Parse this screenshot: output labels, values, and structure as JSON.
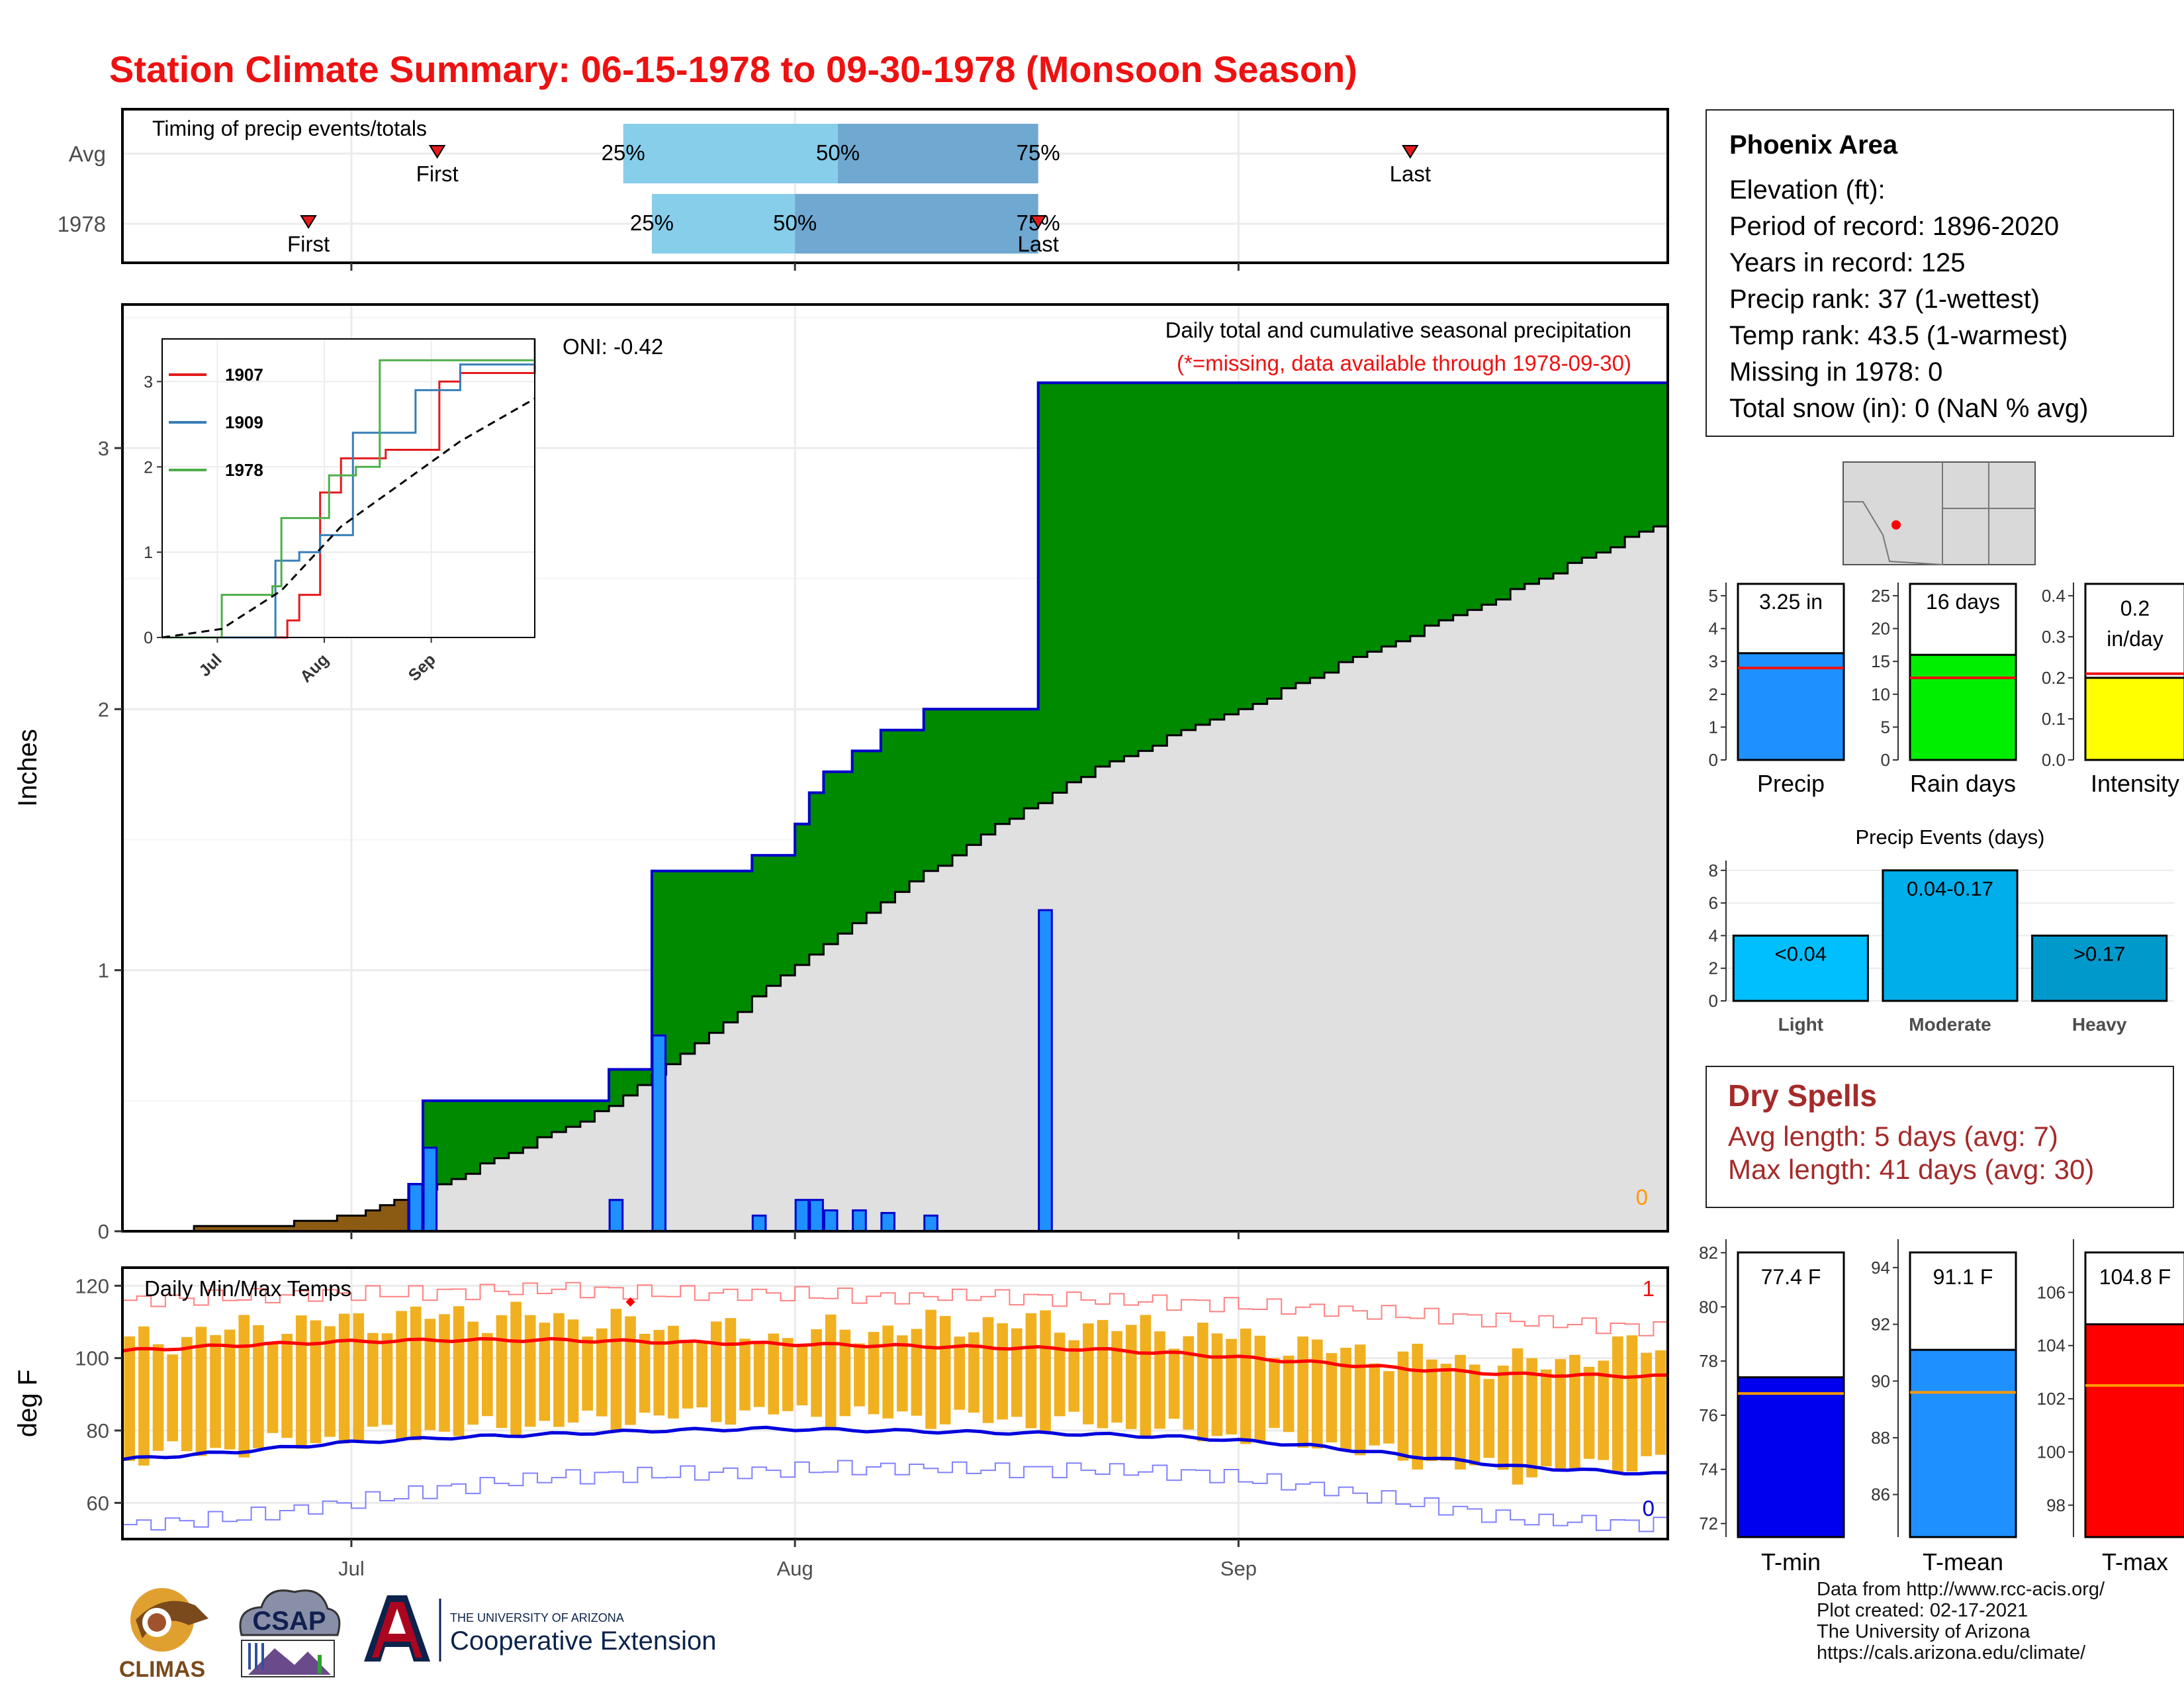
{
  "title": "Station Climate Summary: 06-15-1978 to 09-30-1978 (Monsoon Season)",
  "timing": {
    "title": "Timing of precip events/totals",
    "rows": [
      {
        "label": "Avg",
        "q25": "25%",
        "q50": "50%",
        "q75": "75%",
        "first": "First",
        "last": "Last",
        "q25_date": "1978-07-20",
        "q50_date": "1978-08-04",
        "q75_date": "1978-08-18",
        "first_date": "1978-07-07",
        "last_date": "1978-09-13"
      },
      {
        "label": "1978",
        "q25": "25%",
        "q50": "50%",
        "q75": "75%",
        "first": "First",
        "last": "Last",
        "q25_date": "1978-07-22",
        "q50_date": "1978-08-01",
        "q75_date": "1978-08-18",
        "first_date": "1978-06-28",
        "last_date": "1978-08-18"
      }
    ]
  },
  "precip_panel": {
    "ylabel": "Inches",
    "oni": "ONI: -0.42",
    "subtitle": "Daily total and cumulative seasonal precipitation",
    "missing_note": "(*=missing, data available through 1978-09-30)",
    "missing_count": "0",
    "yticks": [
      "0",
      "1",
      "2",
      "3"
    ],
    "xticks": [
      "Jul",
      "Aug",
      "Sep"
    ]
  },
  "inset": {
    "legend": [
      "1907",
      "1909",
      "1978"
    ],
    "colors": {
      "1907": "#e41a1c",
      "1909": "#377eb8",
      "1978": "#4daf4a"
    },
    "yticks": [
      "0",
      "1",
      "2",
      "3"
    ],
    "xticks": [
      "Jul",
      "Aug",
      "Sep"
    ]
  },
  "temp_panel": {
    "ylabel": "deg F",
    "title": "Daily Min/Max Temps",
    "yticks": [
      "60",
      "80",
      "100",
      "120"
    ],
    "xticks": [
      "Jul",
      "Aug",
      "Sep"
    ],
    "high_count": "1",
    "low_count": "0"
  },
  "station": {
    "name": "Phoenix Area",
    "lines": [
      "Elevation (ft):",
      "Period of record: 1896-2020",
      "Years in record: 125",
      "Precip rank: 37 (1-wettest)",
      "Temp rank: 43.5 (1-warmest)",
      "Missing in 1978: 0",
      "Total snow (in): 0 (NaN % avg)"
    ]
  },
  "mini_bars": [
    {
      "label": "Precip",
      "value_text": "3.25 in",
      "value": 3.25,
      "avg": 2.8,
      "ymax": 5,
      "yticks": [
        "0",
        "1",
        "2",
        "3",
        "4",
        "5"
      ],
      "color": "#1e90ff"
    },
    {
      "label": "Rain days",
      "value_text": "16 days",
      "value": 16,
      "avg": 12.5,
      "ymax": 25,
      "yticks": [
        "0",
        "5",
        "10",
        "15",
        "20",
        "25"
      ],
      "color": "#00ee00"
    },
    {
      "label": "Intensity",
      "value_text": "0.2 in/day",
      "value": 0.2,
      "avg": 0.21,
      "ymax": 0.4,
      "yticks": [
        "0.0",
        "0.1",
        "0.2",
        "0.3",
        "0.4"
      ],
      "color": "#ffff00"
    }
  ],
  "events": {
    "title": "Precip Events (days)",
    "yticks": [
      "0",
      "2",
      "4",
      "6",
      "8"
    ],
    "bars": [
      {
        "name": "Light",
        "label": "<0.04",
        "value": 4,
        "color": "#00bfff"
      },
      {
        "name": "Moderate",
        "label": "0.04-0.17",
        "value": 8,
        "color": "#00aeea"
      },
      {
        "name": "Heavy",
        "label": ">0.17",
        "value": 4,
        "color": "#0099cc"
      }
    ]
  },
  "dry_spells": {
    "title": "Dry Spells",
    "avg": "Avg length: 5 days (avg: 7)",
    "max": "Max length: 41 days (avg: 30)"
  },
  "temp_bars": [
    {
      "label": "T-min",
      "value_text": "77.4 F",
      "value": 77.4,
      "avg": 76.8,
      "ymin": 71.5,
      "ymax": 82.5,
      "yticks": [
        72,
        74,
        76,
        78,
        80,
        82
      ],
      "color": "#0000ee"
    },
    {
      "label": "T-mean",
      "value_text": "91.1 F",
      "value": 91.1,
      "avg": 89.6,
      "ymin": 84.5,
      "ymax": 95,
      "yticks": [
        86,
        88,
        90,
        92,
        94
      ],
      "color": "#1e90ff"
    },
    {
      "label": "T-max",
      "value_text": "104.8 F",
      "value": 104.8,
      "avg": 102.5,
      "ymin": 96.8,
      "ymax": 108,
      "yticks": [
        98,
        100,
        102,
        104,
        106
      ],
      "color": "#ff0000"
    }
  ],
  "footer": [
    "Data from http://www.rcc-acis.org/",
    "Plot created: 02-17-2021",
    "The University of Arizona",
    "https://cals.arizona.edu/climate/"
  ],
  "logos": {
    "climas": "CLIMAS",
    "csap": "CSAP",
    "ua_line1": "THE UNIVERSITY OF ARIZONA",
    "ua_line2": "Cooperative Extension"
  },
  "chart_data": [
    {
      "type": "bar",
      "title": "Timing of precip events/totals",
      "categories": [
        "Avg",
        "1978"
      ],
      "series": [
        {
          "name": "25%",
          "values": [
            "1978-07-20",
            "1978-07-22"
          ]
        },
        {
          "name": "50%",
          "values": [
            "1978-08-04",
            "1978-08-01"
          ]
        },
        {
          "name": "75%",
          "values": [
            "1978-08-18",
            "1978-08-18"
          ]
        },
        {
          "name": "First",
          "values": [
            "1978-07-07",
            "1978-06-28"
          ]
        },
        {
          "name": "Last",
          "values": [
            "1978-09-13",
            "1978-08-18"
          ]
        }
      ]
    },
    {
      "type": "area",
      "title": "Daily total and cumulative seasonal precipitation",
      "ylabel": "Inches",
      "ylim": [
        0,
        3.55
      ],
      "xlim": [
        "1978-06-15",
        "1978-09-30"
      ],
      "daily": [
        {
          "x": "1978-07-05",
          "y": 0.18
        },
        {
          "x": "1978-07-06",
          "y": 0.32
        },
        {
          "x": "1978-07-19",
          "y": 0.12
        },
        {
          "x": "1978-07-22",
          "y": 0.75
        },
        {
          "x": "1978-07-29",
          "y": 0.06
        },
        {
          "x": "1978-08-01",
          "y": 0.12
        },
        {
          "x": "1978-08-02",
          "y": 0.12
        },
        {
          "x": "1978-08-03",
          "y": 0.08
        },
        {
          "x": "1978-08-05",
          "y": 0.08
        },
        {
          "x": "1978-08-07",
          "y": 0.07
        },
        {
          "x": "1978-08-10",
          "y": 0.06
        },
        {
          "x": "1978-08-18",
          "y": 1.23
        }
      ],
      "cumulative_1978": [
        {
          "x": "1978-06-15",
          "y": 0
        },
        {
          "x": "1978-07-05",
          "y": 0.18
        },
        {
          "x": "1978-07-06",
          "y": 0.5
        },
        {
          "x": "1978-07-19",
          "y": 0.62
        },
        {
          "x": "1978-07-22",
          "y": 1.38
        },
        {
          "x": "1978-07-29",
          "y": 1.44
        },
        {
          "x": "1978-08-01",
          "y": 1.56
        },
        {
          "x": "1978-08-02",
          "y": 1.68
        },
        {
          "x": "1978-08-03",
          "y": 1.76
        },
        {
          "x": "1978-08-05",
          "y": 1.84
        },
        {
          "x": "1978-08-07",
          "y": 1.92
        },
        {
          "x": "1978-08-10",
          "y": 2.0
        },
        {
          "x": "1978-08-18",
          "y": 3.25
        },
        {
          "x": "1978-09-30",
          "y": 3.25
        }
      ],
      "cumulative_avg": [
        {
          "x": "1978-06-15",
          "y": 0
        },
        {
          "x": "1978-06-25",
          "y": 0.02
        },
        {
          "x": "1978-07-01",
          "y": 0.06
        },
        {
          "x": "1978-07-06",
          "y": 0.15
        },
        {
          "x": "1978-07-11",
          "y": 0.28
        },
        {
          "x": "1978-07-18",
          "y": 0.45
        },
        {
          "x": "1978-07-25",
          "y": 0.72
        },
        {
          "x": "1978-08-01",
          "y": 1.02
        },
        {
          "x": "1978-08-08",
          "y": 1.3
        },
        {
          "x": "1978-08-15",
          "y": 1.55
        },
        {
          "x": "1978-08-22",
          "y": 1.78
        },
        {
          "x": "1978-09-01",
          "y": 2.0
        },
        {
          "x": "1978-09-10",
          "y": 2.22
        },
        {
          "x": "1978-09-20",
          "y": 2.45
        },
        {
          "x": "1978-09-30",
          "y": 2.7
        }
      ]
    },
    {
      "type": "line",
      "title": "",
      "series": [
        {
          "name": "1907",
          "values": [
            [
              0,
              0
            ],
            [
              42,
              0.2
            ],
            [
              46,
              0.5
            ],
            [
              53,
              1.7
            ],
            [
              60,
              2.1
            ],
            [
              75,
              2.2
            ],
            [
              93,
              3.0
            ],
            [
              100,
              3.1
            ],
            [
              125,
              3.3
            ]
          ]
        },
        {
          "name": "1909",
          "values": [
            [
              0,
              0
            ],
            [
              38,
              0.9
            ],
            [
              46,
              1.0
            ],
            [
              53,
              1.2
            ],
            [
              64,
              2.4
            ],
            [
              85,
              2.9
            ],
            [
              100,
              3.2
            ],
            [
              125,
              3.5
            ]
          ]
        },
        {
          "name": "1978",
          "values": [
            [
              0,
              0
            ],
            [
              20,
              0.5
            ],
            [
              37,
              0.6
            ],
            [
              40,
              1.4
            ],
            [
              56,
              1.9
            ],
            [
              65,
              2.0
            ],
            [
              73,
              3.25
            ],
            [
              125,
              3.25
            ]
          ]
        },
        {
          "name": "average",
          "values": [
            [
              0,
              0
            ],
            [
              20,
              0.1
            ],
            [
              40,
              0.55
            ],
            [
              60,
              1.3
            ],
            [
              80,
              1.8
            ],
            [
              100,
              2.3
            ],
            [
              125,
              2.8
            ]
          ]
        }
      ]
    },
    {
      "type": "line",
      "title": "Daily Min/Max Temps",
      "ylabel": "deg F",
      "ylim": [
        50,
        125
      ],
      "xlim": [
        "1978-06-15",
        "1978-09-30"
      ],
      "series": [
        {
          "name": "avg max",
          "values": [
            102,
            103.5,
            104.5,
            105,
            105,
            104.5,
            104,
            103.5,
            103,
            102.5,
            101,
            99,
            97,
            95.5,
            95
          ]
        },
        {
          "name": "avg min",
          "values": [
            72,
            74,
            76.5,
            78,
            79,
            80,
            80.5,
            80,
            79.5,
            79,
            78,
            76,
            73,
            70,
            68
          ]
        },
        {
          "name": "record max",
          "values": [
            116,
            117,
            118,
            118,
            119,
            118,
            118,
            117,
            117,
            116,
            115,
            114,
            112,
            110,
            108
          ]
        },
        {
          "name": "record min",
          "values": [
            54,
            56,
            60,
            64,
            67,
            68,
            69,
            70,
            69,
            69,
            68,
            65,
            60,
            55,
            54
          ]
        },
        {
          "name": "1978 max",
          "values": [
            104,
            108,
            110,
            112,
            111,
            108,
            106,
            108,
            110,
            109,
            107,
            103,
            100,
            98,
            104
          ]
        },
        {
          "name": "1978 min",
          "values": [
            73,
            75,
            78,
            80,
            82,
            84,
            85,
            84,
            83,
            82,
            79,
            77,
            72,
            68,
            72
          ]
        }
      ],
      "x_period_days": [
        0,
        7.5,
        15,
        22.5,
        30,
        37.5,
        45,
        52.5,
        60,
        67.5,
        75,
        82.5,
        90,
        97.5,
        107
      ]
    },
    {
      "type": "bar",
      "categories": [
        "Precip"
      ],
      "values": [
        3.25
      ],
      "ylim": [
        0,
        5
      ]
    },
    {
      "type": "bar",
      "categories": [
        "Rain days"
      ],
      "values": [
        16
      ],
      "ylim": [
        0,
        25
      ]
    },
    {
      "type": "bar",
      "categories": [
        "Intensity"
      ],
      "values": [
        0.2
      ],
      "ylim": [
        0,
        0.4
      ]
    },
    {
      "type": "bar",
      "title": "Precip Events (days)",
      "categories": [
        "Light",
        "Moderate",
        "Heavy"
      ],
      "values": [
        4,
        8,
        4
      ],
      "ylim": [
        0,
        8.5
      ]
    },
    {
      "type": "bar",
      "categories": [
        "T-min"
      ],
      "values": [
        77.4
      ]
    },
    {
      "type": "bar",
      "categories": [
        "T-mean"
      ],
      "values": [
        91.1
      ]
    },
    {
      "type": "bar",
      "categories": [
        "T-max"
      ],
      "values": [
        104.8
      ]
    }
  ]
}
